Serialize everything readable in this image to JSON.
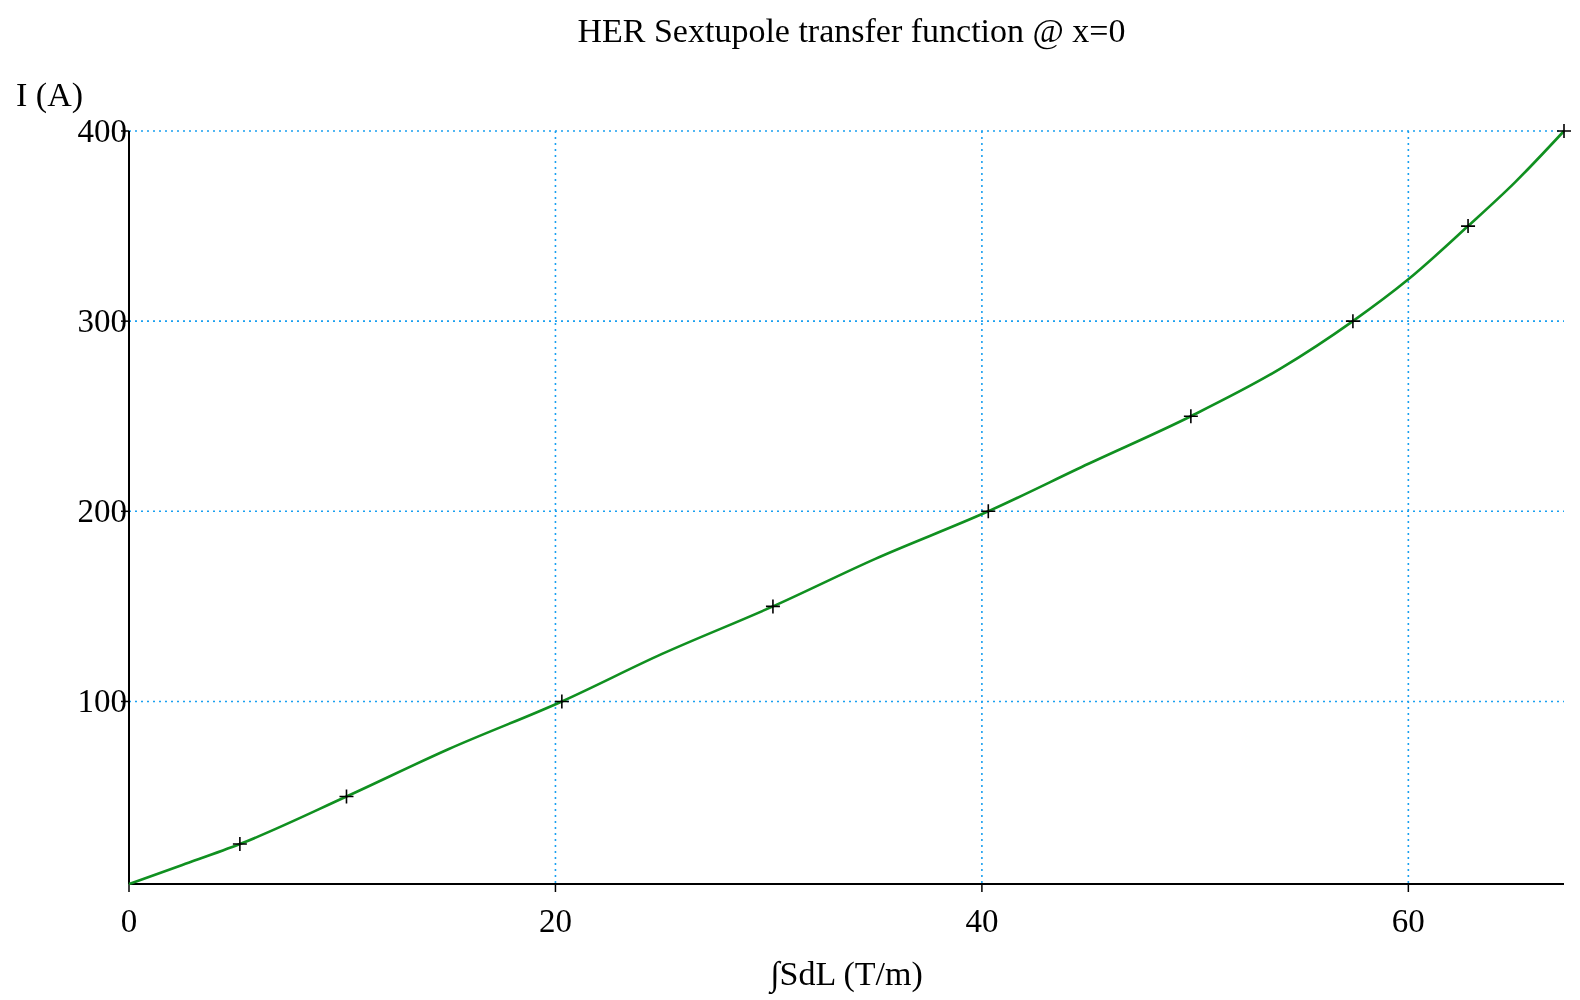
{
  "chart_data": {
    "type": "line",
    "title": "HER Sextupole transfer function @ x=0",
    "xlabel": "∫SdL (T/m)",
    "ylabel": "I (A)",
    "xlim": [
      0,
      67.3
    ],
    "ylim": [
      4,
      400
    ],
    "xticks": [
      0,
      20,
      40,
      60
    ],
    "yticks": [
      100,
      200,
      300,
      400
    ],
    "grid": true,
    "series": [
      {
        "type": "line",
        "color": "#109020",
        "marker": "none",
        "x": [
          0,
          2.5,
          5.2,
          10.2,
          15,
          20.3,
          25,
          30.2,
          35,
          40.3,
          45,
          49.8,
          54,
          57.4,
          60,
          62.8,
          65,
          67.3
        ],
        "values": [
          4,
          14,
          25,
          50,
          75,
          100,
          125,
          150,
          175,
          200,
          225,
          250,
          275,
          300,
          322,
          350,
          373,
          400
        ]
      },
      {
        "type": "scatter",
        "color": "#000000",
        "marker": "cross",
        "x": [
          5.2,
          10.2,
          20.3,
          30.2,
          40.3,
          49.8,
          57.4,
          62.8,
          67.3
        ],
        "values": [
          25,
          50,
          100,
          150,
          200,
          250,
          300,
          350,
          400
        ]
      }
    ]
  }
}
